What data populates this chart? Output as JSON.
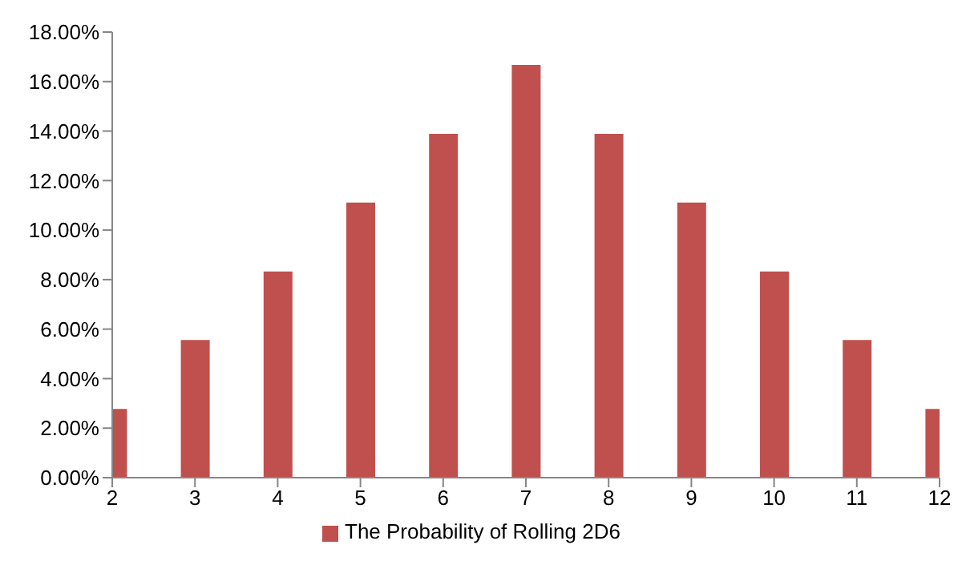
{
  "chart_data": {
    "type": "bar",
    "x": [
      2,
      3,
      4,
      5,
      6,
      7,
      8,
      9,
      10,
      11,
      12
    ],
    "series": [
      {
        "name": "The Probability of Rolling 2D6",
        "color": "#c0504d",
        "values": [
          2.78,
          5.56,
          8.33,
          11.11,
          13.89,
          16.67,
          13.89,
          11.11,
          8.33,
          5.56,
          2.78
        ]
      }
    ],
    "xlim": [
      2,
      12
    ],
    "xticks": [
      2,
      3,
      4,
      5,
      6,
      7,
      8,
      9,
      10,
      11,
      12
    ],
    "ylim": [
      0,
      18
    ],
    "yticks": [
      {
        "value": 0,
        "label": "0.00%"
      },
      {
        "value": 2,
        "label": "2.00%"
      },
      {
        "value": 4,
        "label": "4.00%"
      },
      {
        "value": 6,
        "label": "6.00%"
      },
      {
        "value": 8,
        "label": "8.00%"
      },
      {
        "value": 10,
        "label": "10.00%"
      },
      {
        "value": 12,
        "label": "12.00%"
      },
      {
        "value": 14,
        "label": "14.00%"
      },
      {
        "value": 16,
        "label": "16.00%"
      },
      {
        "value": 18,
        "label": "18.00%"
      }
    ],
    "legend": "bottom"
  }
}
